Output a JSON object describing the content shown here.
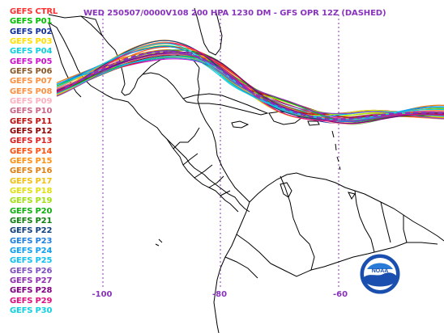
{
  "title": "WED 250507/0000V108  200 HPA 1230 DM - GFS OPR 12Z (DASHED)",
  "colors": {
    "title": "#8833bb",
    "axis_label": "#8833bb",
    "coast": "#000000",
    "gridline": "#8833bb",
    "operational_run": "#8833bb"
  },
  "legend": [
    {
      "label": "GEFS CTRL",
      "color": "#ff3030"
    },
    {
      "label": "GEFS P01",
      "color": "#00c000"
    },
    {
      "label": "GEFS P02",
      "color": "#1030a0"
    },
    {
      "label": "GEFS P03",
      "color": "#ffe000"
    },
    {
      "label": "GEFS P04",
      "color": "#10d0e0"
    },
    {
      "label": "GEFS P05",
      "color": "#d010d0"
    },
    {
      "label": "GEFS P06",
      "color": "#8b5a2b"
    },
    {
      "label": "GEFS P07",
      "color": "#ff9040"
    },
    {
      "label": "GEFS P08",
      "color": "#ff9040"
    },
    {
      "label": "GEFS P09",
      "color": "#ffb0c0"
    },
    {
      "label": "GEFS P10",
      "color": "#cc6688"
    },
    {
      "label": "GEFS P11",
      "color": "#c01010"
    },
    {
      "label": "GEFS P12",
      "color": "#900000"
    },
    {
      "label": "GEFS P13",
      "color": "#e02020"
    },
    {
      "label": "GEFS P14",
      "color": "#ff5010"
    },
    {
      "label": "GEFS P15",
      "color": "#ff9010"
    },
    {
      "label": "GEFS P16",
      "color": "#e08010"
    },
    {
      "label": "GEFS P17",
      "color": "#f0c010"
    },
    {
      "label": "GEFS P18",
      "color": "#e0e010"
    },
    {
      "label": "GEFS P19",
      "color": "#a0e010"
    },
    {
      "label": "GEFS P20",
      "color": "#10b010"
    },
    {
      "label": "GEFS P21",
      "color": "#108010"
    },
    {
      "label": "GEFS P22",
      "color": "#104080"
    },
    {
      "label": "GEFS P23",
      "color": "#2080e0"
    },
    {
      "label": "GEFS P24",
      "color": "#10a0f0"
    },
    {
      "label": "GEFS P25",
      "color": "#10c0f0"
    },
    {
      "label": "GEFS P26",
      "color": "#8050c0"
    },
    {
      "label": "GEFS P27",
      "color": "#9030b0"
    },
    {
      "label": "GEFS P28",
      "color": "#800080"
    },
    {
      "label": "GEFS P29",
      "color": "#e01080"
    },
    {
      "label": "GEFS P30",
      "color": "#10d0e0"
    }
  ],
  "lon_labels": [
    "-100",
    "-80",
    "-60"
  ],
  "noaa_label": "NOAA"
}
